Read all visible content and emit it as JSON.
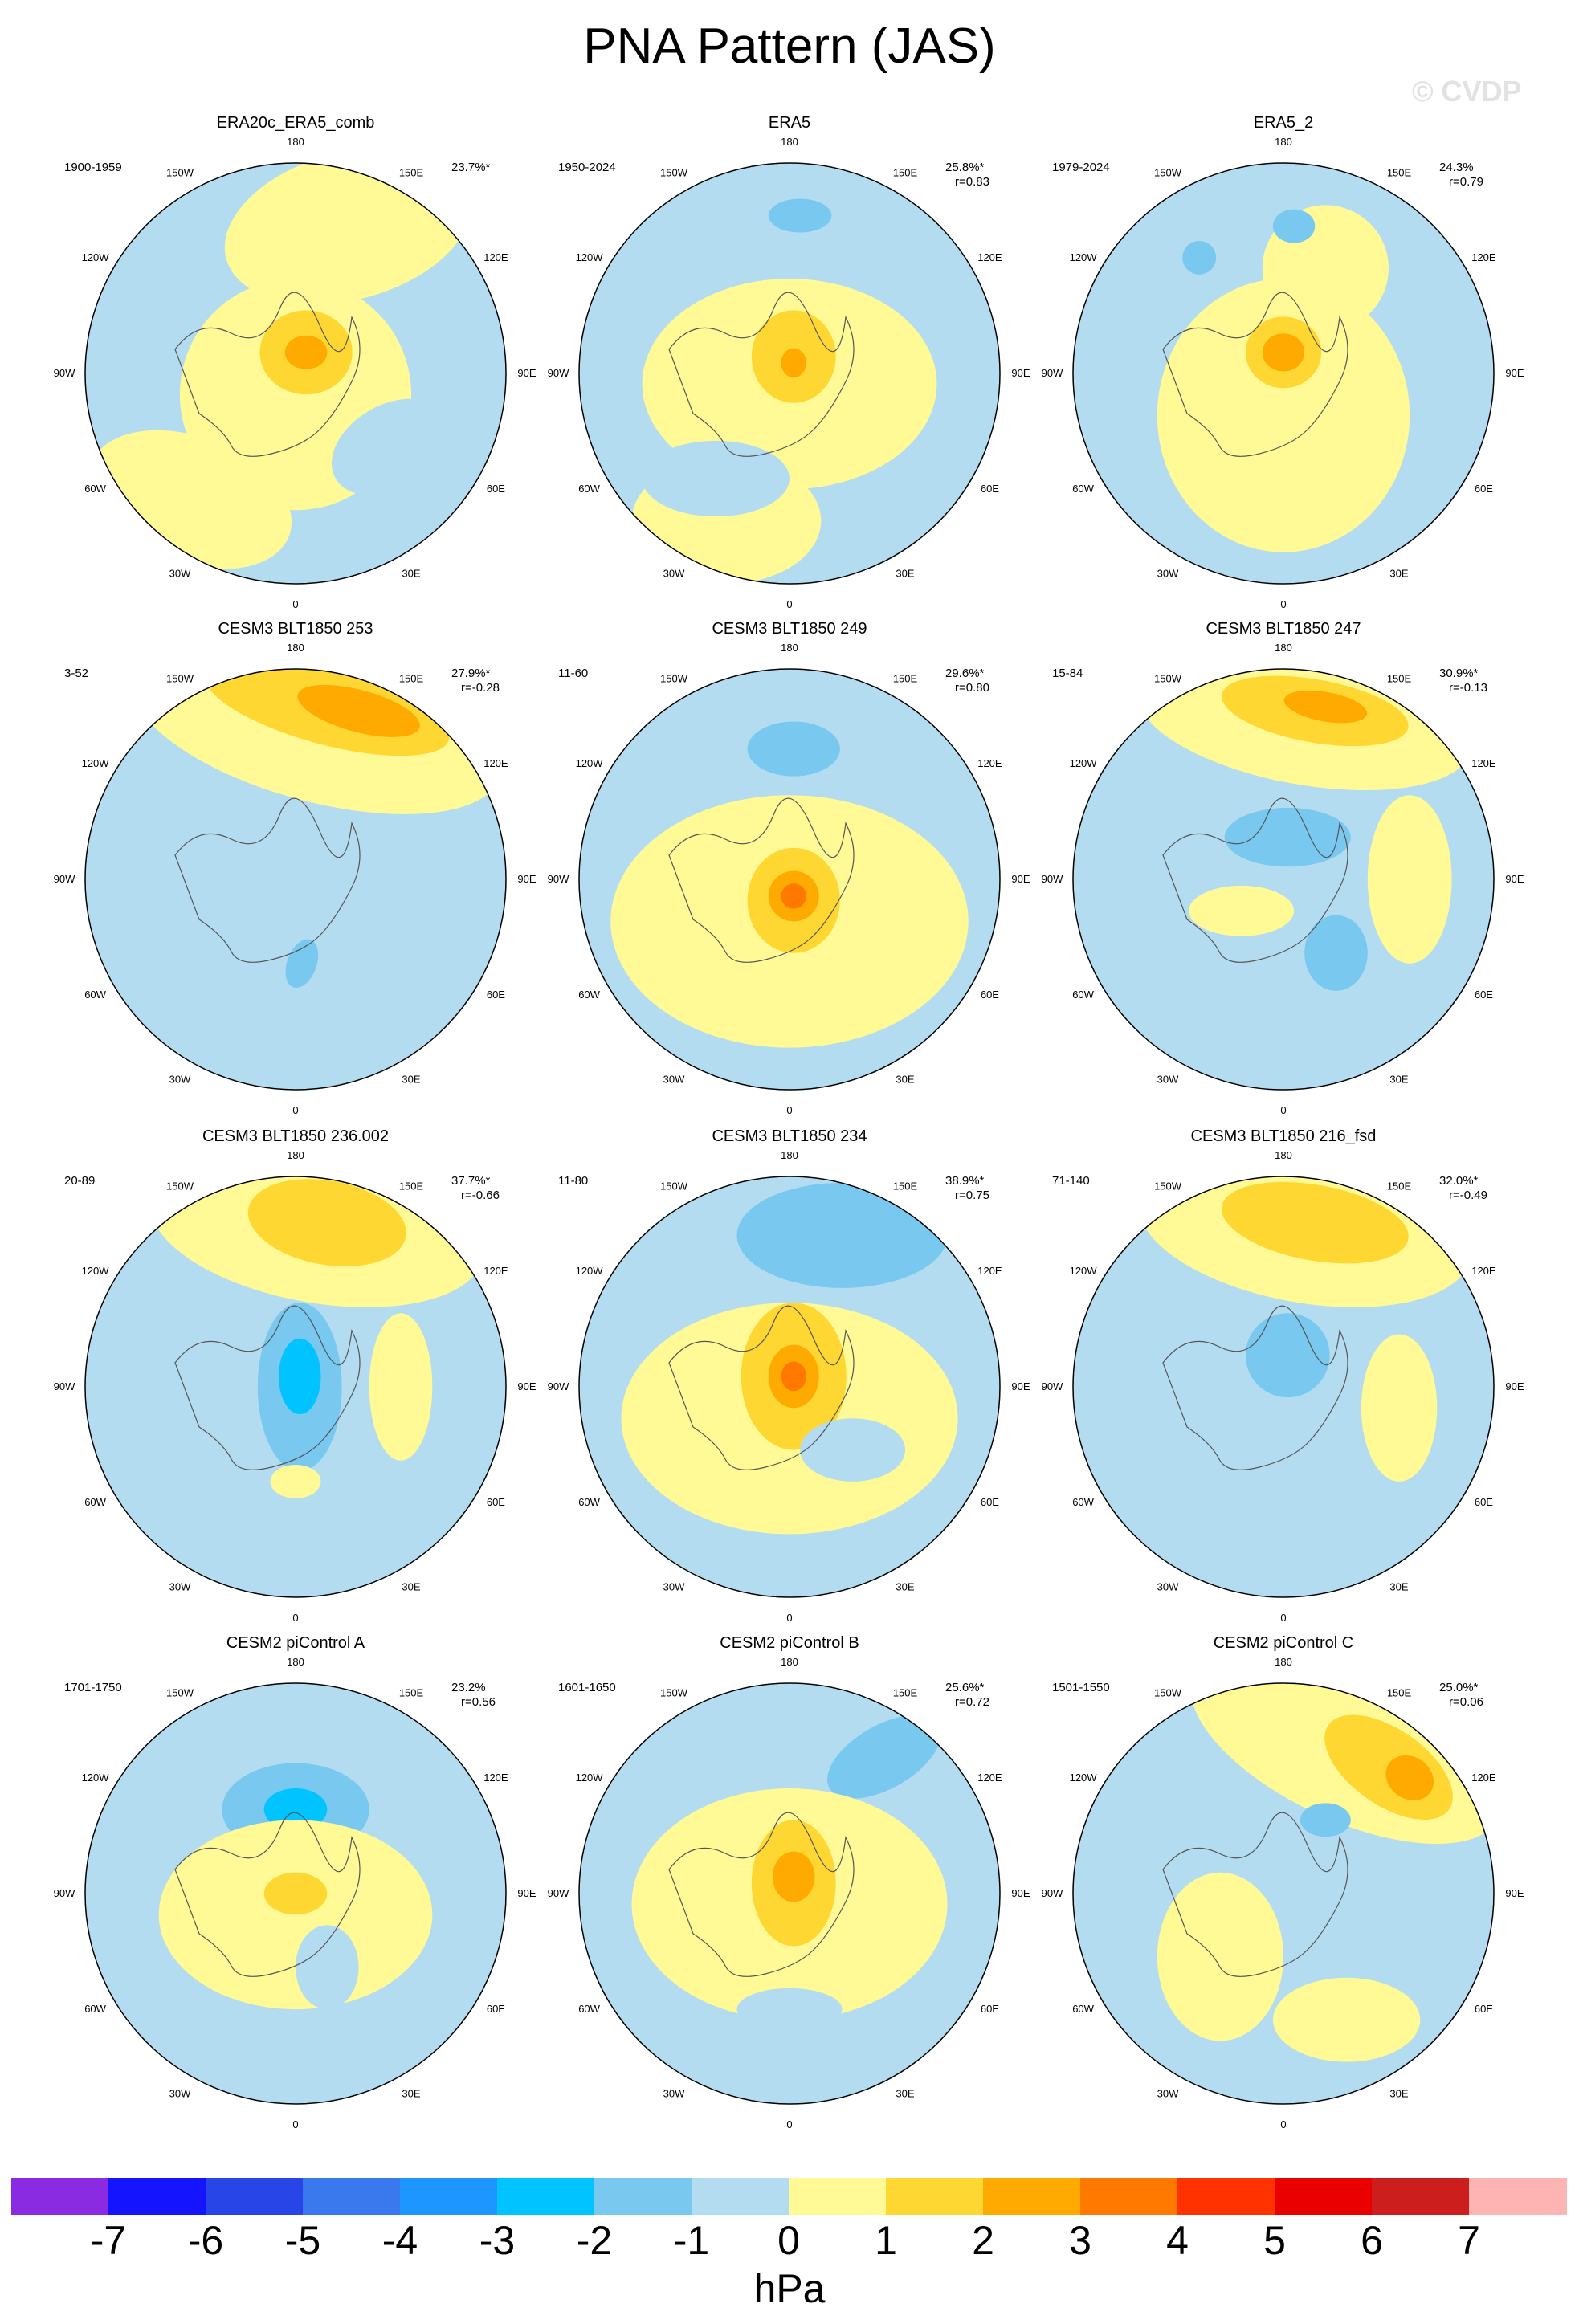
{
  "title": "PNA Pattern (JAS)",
  "watermark": "© CVDP",
  "units": "hPa",
  "longitude_labels": [
    "180",
    "150E",
    "120E",
    "90E",
    "60E",
    "30E",
    "0",
    "30W",
    "60W",
    "90W",
    "120W",
    "150W"
  ],
  "colorbar": {
    "ticks": [
      "-7",
      "-6",
      "-5",
      "-4",
      "-3",
      "-2",
      "-1",
      "0",
      "1",
      "2",
      "3",
      "4",
      "5",
      "6",
      "7"
    ],
    "colors": [
      "#8a2be2",
      "#1414ff",
      "#2846e8",
      "#3a78ee",
      "#1e96ff",
      "#00c3ff",
      "#78c8f0",
      "#b4dcf0",
      "#fffa96",
      "#ffd732",
      "#ffaa00",
      "#ff7800",
      "#ff3200",
      "#eb0000",
      "#cd1e1e",
      "#ffb4b4"
    ]
  },
  "panels": [
    {
      "title": "ERA20c_ERA5_comb",
      "years": "1900-1959",
      "pct": "23.7%*",
      "r": ""
    },
    {
      "title": "ERA5",
      "years": "1950-2024",
      "pct": "25.8%*",
      "r": "r=0.83"
    },
    {
      "title": "ERA5_2",
      "years": "1979-2024",
      "pct": "24.3%",
      "r": "r=0.79"
    },
    {
      "title": "CESM3 BLT1850 253",
      "years": "3-52",
      "pct": "27.9%*",
      "r": "r=-0.28"
    },
    {
      "title": "CESM3 BLT1850 249",
      "years": "11-60",
      "pct": "29.6%*",
      "r": "r=0.80"
    },
    {
      "title": "CESM3 BLT1850 247",
      "years": "15-84",
      "pct": "30.9%*",
      "r": "r=-0.13"
    },
    {
      "title": "CESM3 BLT1850 236.002",
      "years": "20-89",
      "pct": "37.7%*",
      "r": "r=-0.66"
    },
    {
      "title": "CESM3 BLT1850 234",
      "years": "11-80",
      "pct": "38.9%*",
      "r": "r=0.75"
    },
    {
      "title": "CESM3 BLT1850 216_fsd",
      "years": "71-140",
      "pct": "32.0%*",
      "r": "r=-0.49"
    },
    {
      "title": "CESM2 piControl A",
      "years": "1701-1750",
      "pct": "23.2%",
      "r": "r=0.56"
    },
    {
      "title": "CESM2 piControl B",
      "years": "1601-1650",
      "pct": "25.6%*",
      "r": "r=0.72"
    },
    {
      "title": "CESM2 piControl C",
      "years": "1501-1550",
      "pct": "25.0%*",
      "r": "r=0.06"
    }
  ]
}
